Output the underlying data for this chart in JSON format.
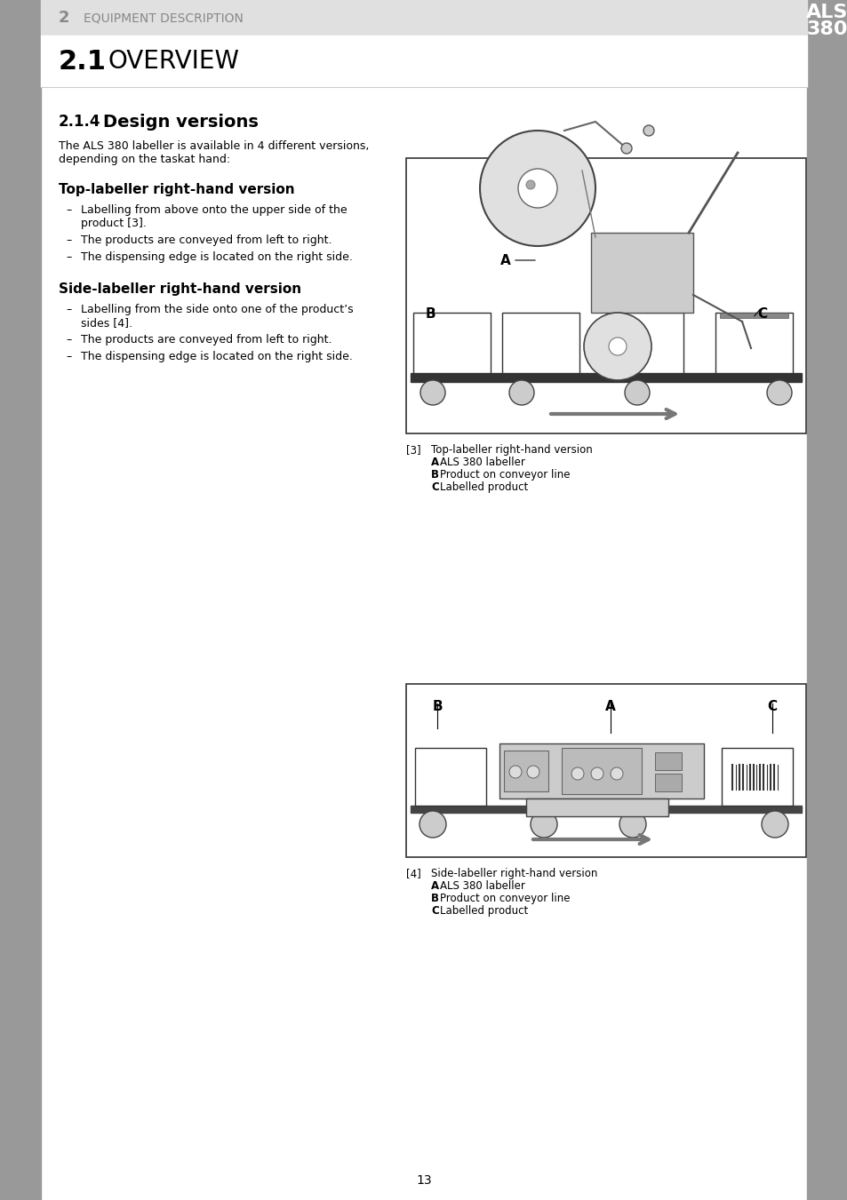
{
  "page_bg": "#ffffff",
  "sidebar_color": "#999999",
  "title_chapter": "2",
  "title_chapter_label": "EQUIPMENT DESCRIPTION",
  "title_section": "2.1",
  "title_section_label": "OVERVIEW",
  "als_label": "ALS",
  "als_num": "380",
  "section_number": "2.1.4",
  "section_title": "Design versions",
  "intro_line1": "The ALS 380 labeller is available in 4 different versions,",
  "intro_line2": "depending on the taskat hand:",
  "heading1": "Top-labeller right-hand version",
  "bullet1_1a": "Labelling from above onto the upper side of the",
  "bullet1_1b": "product [3].",
  "bullet1_2": "The products are conveyed from left to right.",
  "bullet1_3": "The dispensing edge is located on the right side.",
  "heading2": "Side-labeller right-hand version",
  "bullet2_1a": "Labelling from the side onto one of the product’s",
  "bullet2_1b": "sides [4].",
  "bullet2_2": "The products are conveyed from left to right.",
  "bullet2_3": "The dispensing edge is located on the right side.",
  "fig1_num": "[3]",
  "fig1_title": "Top-labeller right-hand version",
  "fig1_a": "ALS 380 labeller",
  "fig1_b": "Product on conveyor line",
  "fig1_c": "Labelled product",
  "fig2_num": "[4]",
  "fig2_title": "Side-labeller right-hand version",
  "fig2_a": "ALS 380 labeller",
  "fig2_b": "Product on conveyor line",
  "fig2_c": "Labelled product",
  "page_number": "13"
}
